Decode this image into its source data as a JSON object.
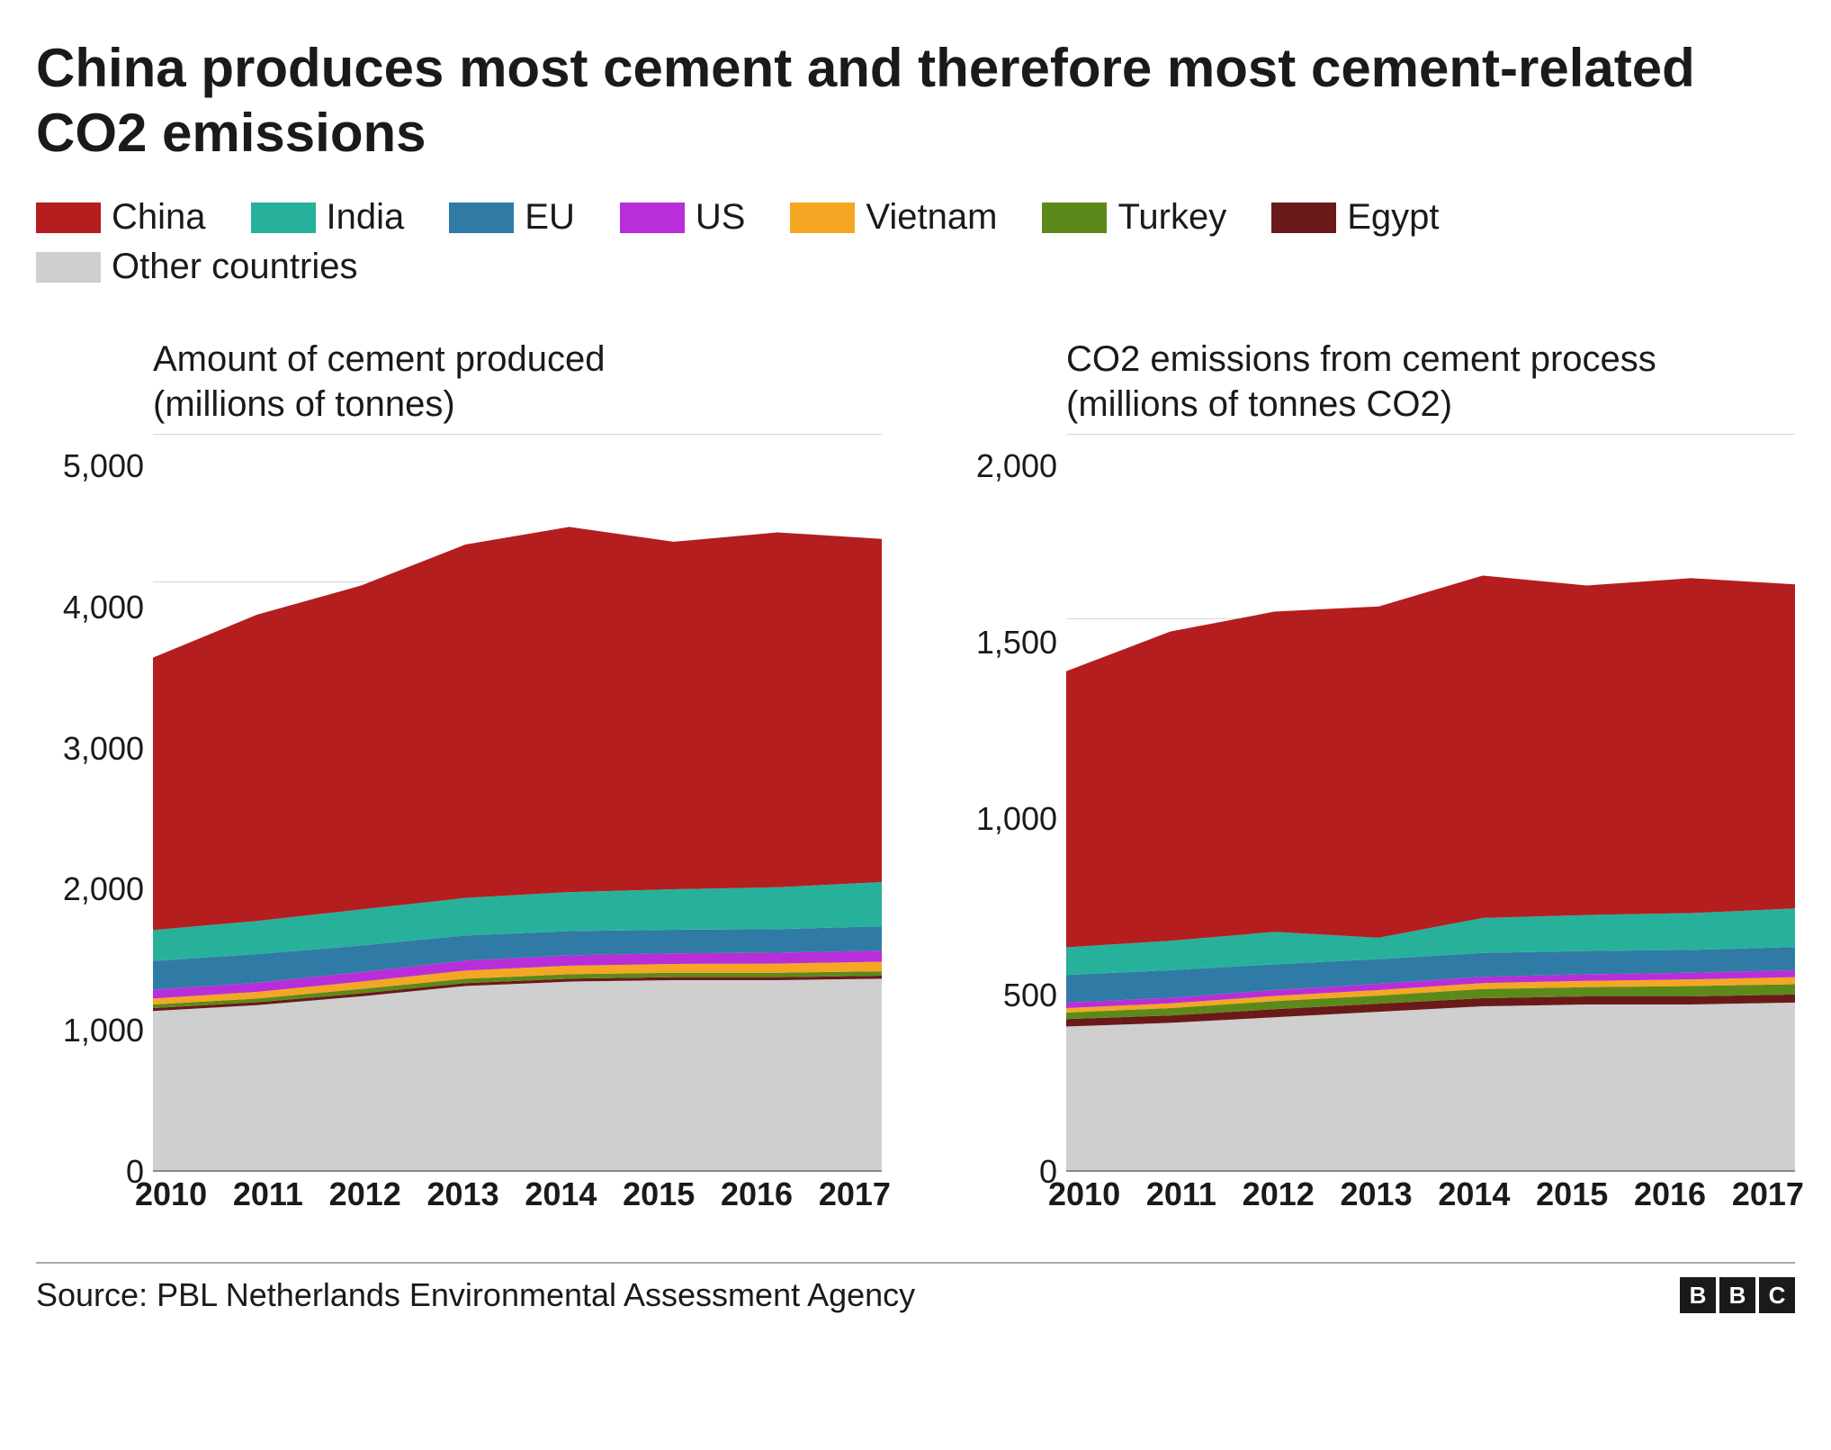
{
  "title": "China produces most cement and therefore most cement-related CO2 emissions",
  "source": "Source: PBL Netherlands Environmental Assessment Agency",
  "logo_letters": [
    "B",
    "B",
    "C"
  ],
  "legend": [
    {
      "label": "China",
      "color": "#b41e1f"
    },
    {
      "label": "India",
      "color": "#27b19b"
    },
    {
      "label": "EU",
      "color": "#2f7ba5"
    },
    {
      "label": "US",
      "color": "#b82ed8"
    },
    {
      "label": "Vietnam",
      "color": "#f5a623"
    },
    {
      "label": "Turkey",
      "color": "#5c8a1a"
    },
    {
      "label": "Egypt",
      "color": "#6b1a1a"
    },
    {
      "label": "Other countries",
      "color": "#cfcfcf"
    }
  ],
  "x_vals": [
    2010,
    2011,
    2012,
    2013,
    2014,
    2015,
    2016,
    2017
  ],
  "charts": [
    {
      "subtitle_line1": "Amount of cement produced",
      "subtitle_line2": "(millions of tonnes)",
      "ymax": 5000,
      "yticks": [
        0,
        1000,
        2000,
        3000,
        4000,
        5000
      ],
      "ytick_labels": [
        "0",
        "1,000",
        "2,000",
        "3,000",
        "4,000",
        "5,000"
      ],
      "series": [
        {
          "name": "Other countries",
          "color": "#cfcfcf",
          "values": [
            1080,
            1120,
            1180,
            1250,
            1280,
            1290,
            1290,
            1300
          ]
        },
        {
          "name": "Egypt",
          "color": "#6b1a1a",
          "values": [
            20,
            20,
            20,
            20,
            20,
            20,
            20,
            20
          ]
        },
        {
          "name": "Turkey",
          "color": "#5c8a1a",
          "values": [
            25,
            25,
            30,
            30,
            30,
            30,
            30,
            30
          ]
        },
        {
          "name": "Vietnam",
          "color": "#f5a623",
          "values": [
            40,
            45,
            50,
            55,
            58,
            60,
            62,
            65
          ]
        },
        {
          "name": "US",
          "color": "#b82ed8",
          "values": [
            60,
            62,
            65,
            68,
            70,
            72,
            74,
            76
          ]
        },
        {
          "name": "EU",
          "color": "#2f7ba5",
          "values": [
            195,
            195,
            180,
            170,
            165,
            160,
            160,
            165
          ]
        },
        {
          "name": "India",
          "color": "#27b19b",
          "values": [
            210,
            225,
            245,
            255,
            265,
            275,
            285,
            300
          ]
        },
        {
          "name": "China",
          "color": "#b41e1f",
          "values": [
            1850,
            2080,
            2200,
            2400,
            2480,
            2360,
            2410,
            2330
          ]
        }
      ],
      "x_labels": [
        "2010",
        "2011",
        "2012",
        "2013",
        "2014",
        "2015",
        "2016",
        "2017"
      ]
    },
    {
      "subtitle_line1": "CO2 emissions from cement process",
      "subtitle_line2": "(millions of tonnes CO2)",
      "ymax": 2000,
      "yticks": [
        0,
        500,
        1000,
        1500,
        2000
      ],
      "ytick_labels": [
        "0",
        "500",
        "1,000",
        "1,500",
        "2,000"
      ],
      "series": [
        {
          "name": "Other countries",
          "color": "#cfcfcf",
          "values": [
            390,
            400,
            415,
            430,
            445,
            450,
            450,
            455
          ]
        },
        {
          "name": "Egypt",
          "color": "#6b1a1a",
          "values": [
            20,
            20,
            22,
            22,
            22,
            22,
            22,
            22
          ]
        },
        {
          "name": "Turkey",
          "color": "#5c8a1a",
          "values": [
            18,
            20,
            22,
            22,
            25,
            25,
            28,
            28
          ]
        },
        {
          "name": "Vietnam",
          "color": "#f5a623",
          "values": [
            12,
            13,
            14,
            15,
            16,
            17,
            18,
            19
          ]
        },
        {
          "name": "US",
          "color": "#b82ed8",
          "values": [
            15,
            15,
            16,
            17,
            17,
            18,
            18,
            19
          ]
        },
        {
          "name": "EU",
          "color": "#2f7ba5",
          "values": [
            75,
            75,
            70,
            67,
            65,
            63,
            62,
            63
          ]
        },
        {
          "name": "India",
          "color": "#27b19b",
          "values": [
            75,
            80,
            88,
            58,
            95,
            98,
            100,
            105
          ]
        },
        {
          "name": "China",
          "color": "#b41e1f",
          "values": [
            750,
            840,
            870,
            900,
            930,
            895,
            910,
            880
          ]
        }
      ],
      "x_labels": [
        "2010",
        "2011",
        "2012",
        "2013",
        "2014",
        "2015",
        "2016",
        "2017"
      ]
    }
  ],
  "styling": {
    "background_color": "#ffffff",
    "grid_color": "#d6d6d6",
    "axis_color": "#888888",
    "text_color": "#1a1a1a",
    "title_fontsize": 60,
    "subtitle_fontsize": 40,
    "legend_fontsize": 40,
    "axis_fontsize": 36,
    "footer_fontsize": 36
  }
}
